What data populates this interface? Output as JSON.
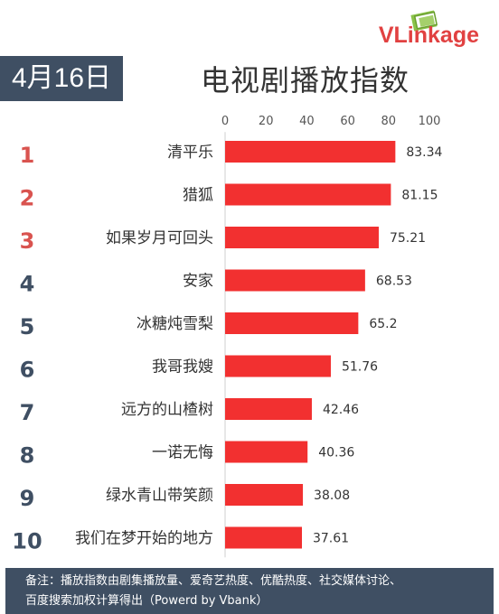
{
  "header": {
    "date": "4月16日",
    "title": "电视剧播放指数",
    "logo": "VLinkage"
  },
  "footer": {
    "line1": "备注：播放指数由剧集播放量、爱奇艺热度、优酷热度、社交媒体讨论、",
    "line2": "百度搜索加权计算得出（Powerd by Vbank）"
  },
  "colors": {
    "bar": "#f23030",
    "rank_top3": "#d9534f",
    "rank_rest": "#3f4f63",
    "badge_bg": "#3f4f63"
  },
  "chart_data": {
    "type": "bar",
    "orientation": "horizontal",
    "title": "电视剧播放指数",
    "xlim": [
      0,
      100
    ],
    "xticks": [
      0,
      20,
      40,
      60,
      80,
      100
    ],
    "grid": false,
    "ranks": [
      "1",
      "2",
      "3",
      "4",
      "5",
      "6",
      "7",
      "8",
      "9",
      "10"
    ],
    "categories": [
      "清平乐",
      "猎狐",
      "如果岁月可回头",
      "安家",
      "冰糖炖雪梨",
      "我哥我嫂",
      "远方的山楂树",
      "一诺无悔",
      "绿水青山带笑颜",
      "我们在梦开始的地方"
    ],
    "values": [
      83.34,
      81.15,
      75.21,
      68.53,
      65.2,
      51.76,
      42.46,
      40.36,
      38.08,
      37.61
    ],
    "value_labels": [
      "83.34",
      "81.15",
      "75.21",
      "68.53",
      "65.2",
      "51.76",
      "42.46",
      "40.36",
      "38.08",
      "37.61"
    ]
  }
}
